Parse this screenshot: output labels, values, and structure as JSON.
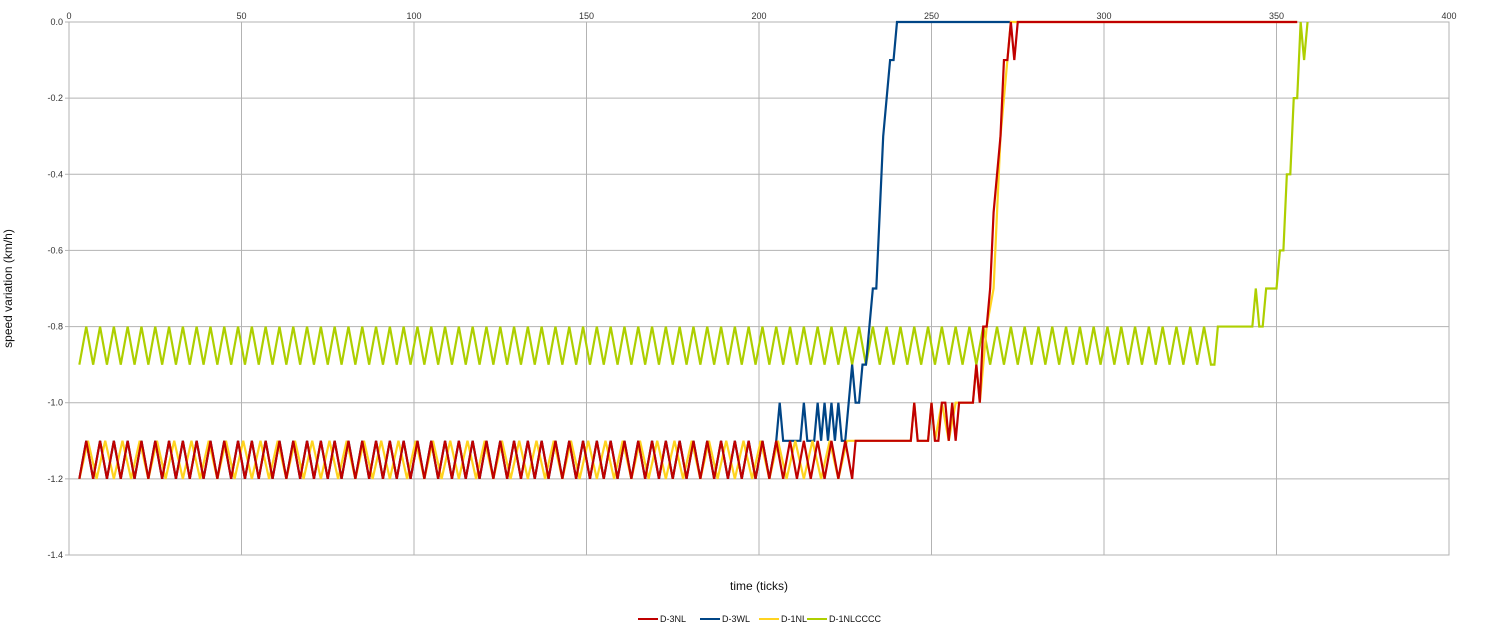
{
  "chart_data": {
    "type": "line",
    "title": "",
    "xlabel": "time (ticks)",
    "ylabel": "speed variation (km/h)",
    "xlim": [
      0,
      400
    ],
    "ylim": [
      -1.4,
      0
    ],
    "x_ticks": [
      "0",
      "50",
      "100",
      "150",
      "200",
      "250",
      "300",
      "350",
      "400"
    ],
    "y_ticks": [
      "0.0",
      "-0.2",
      "-0.4",
      "-0.6",
      "-0.8",
      "-1.0",
      "-1.2",
      "-1.4"
    ],
    "grid": true,
    "legend_position": "bottom",
    "series": [
      {
        "name": "D-3NL",
        "color": "#c00000",
        "pattern": {
          "x_start": 3,
          "x_end": 228,
          "step": 2,
          "low": -1.2,
          "high": -1.1
        },
        "points": [
          [
            228,
            -1.1
          ],
          [
            244,
            -1.1
          ],
          [
            245,
            -1.0
          ],
          [
            246,
            -1.1
          ],
          [
            249,
            -1.1
          ],
          [
            250,
            -1.0
          ],
          [
            251,
            -1.1
          ],
          [
            252,
            -1.1
          ],
          [
            253,
            -1.0
          ],
          [
            254,
            -1.0
          ],
          [
            255,
            -1.1
          ],
          [
            256,
            -1.0
          ],
          [
            257,
            -1.1
          ],
          [
            258,
            -1.0
          ],
          [
            262,
            -1.0
          ],
          [
            263,
            -0.9
          ],
          [
            264,
            -1.0
          ],
          [
            265,
            -0.8
          ],
          [
            266,
            -0.8
          ],
          [
            267,
            -0.7
          ],
          [
            268,
            -0.5
          ],
          [
            269,
            -0.4
          ],
          [
            270,
            -0.3
          ],
          [
            271,
            -0.1
          ],
          [
            272,
            -0.1
          ],
          [
            273,
            0.0
          ],
          [
            274,
            -0.1
          ],
          [
            275,
            0.0
          ],
          [
            356,
            0.0
          ]
        ]
      },
      {
        "name": "D-3WL",
        "color": "#004586",
        "pattern": {
          "x_start": 3,
          "x_end": 205,
          "step": 2,
          "low": -1.2,
          "high": -1.1
        },
        "points": [
          [
            205,
            -1.1
          ],
          [
            206,
            -1.0
          ],
          [
            207,
            -1.1
          ],
          [
            212,
            -1.1
          ],
          [
            213,
            -1.0
          ],
          [
            214,
            -1.1
          ],
          [
            216,
            -1.1
          ],
          [
            217,
            -1.0
          ],
          [
            218,
            -1.1
          ],
          [
            219,
            -1.0
          ],
          [
            220,
            -1.1
          ],
          [
            221,
            -1.0
          ],
          [
            222,
            -1.1
          ],
          [
            223,
            -1.0
          ],
          [
            224,
            -1.1
          ],
          [
            225,
            -1.1
          ],
          [
            226,
            -1.0
          ],
          [
            227,
            -0.9
          ],
          [
            228,
            -1.0
          ],
          [
            229,
            -1.0
          ],
          [
            230,
            -0.9
          ],
          [
            231,
            -0.9
          ],
          [
            232,
            -0.8
          ],
          [
            233,
            -0.7
          ],
          [
            234,
            -0.7
          ],
          [
            235,
            -0.5
          ],
          [
            236,
            -0.3
          ],
          [
            237,
            -0.2
          ],
          [
            238,
            -0.1
          ],
          [
            239,
            -0.1
          ],
          [
            240,
            0.0
          ],
          [
            273,
            0.0
          ]
        ]
      },
      {
        "name": "D-1NL",
        "color": "#ffd320",
        "pattern": {
          "x_start": 3,
          "x_end": 227,
          "step": 2.5,
          "low": -1.2,
          "high": -1.1
        },
        "points": [
          [
            227,
            -1.1
          ],
          [
            244,
            -1.1
          ],
          [
            245,
            -1.0
          ],
          [
            246,
            -1.1
          ],
          [
            249,
            -1.1
          ],
          [
            250,
            -1.0
          ],
          [
            251,
            -1.1
          ],
          [
            253,
            -1.0
          ],
          [
            255,
            -1.1
          ],
          [
            257,
            -1.0
          ],
          [
            258,
            -1.0
          ],
          [
            262,
            -1.0
          ],
          [
            263,
            -0.9
          ],
          [
            264,
            -1.0
          ],
          [
            266,
            -0.8
          ],
          [
            268,
            -0.7
          ],
          [
            269,
            -0.5
          ],
          [
            270,
            -0.3
          ],
          [
            271,
            -0.2
          ],
          [
            272,
            -0.1
          ],
          [
            273,
            0.0
          ],
          [
            356,
            0.0
          ]
        ]
      },
      {
        "name": "D-1NLCCCC",
        "color": "#aecf00",
        "pattern": {
          "x_start": 3,
          "x_end": 332,
          "step": 2,
          "low": -0.9,
          "high": -0.8
        },
        "points": [
          [
            332,
            -0.9
          ],
          [
            333,
            -0.8
          ],
          [
            343,
            -0.8
          ],
          [
            344,
            -0.7
          ],
          [
            345,
            -0.8
          ],
          [
            346,
            -0.8
          ],
          [
            347,
            -0.7
          ],
          [
            350,
            -0.7
          ],
          [
            351,
            -0.6
          ],
          [
            352,
            -0.6
          ],
          [
            353,
            -0.4
          ],
          [
            354,
            -0.4
          ],
          [
            355,
            -0.2
          ],
          [
            356,
            -0.2
          ],
          [
            357,
            0.0
          ],
          [
            358,
            -0.1
          ],
          [
            359,
            0.0
          ]
        ]
      }
    ]
  }
}
